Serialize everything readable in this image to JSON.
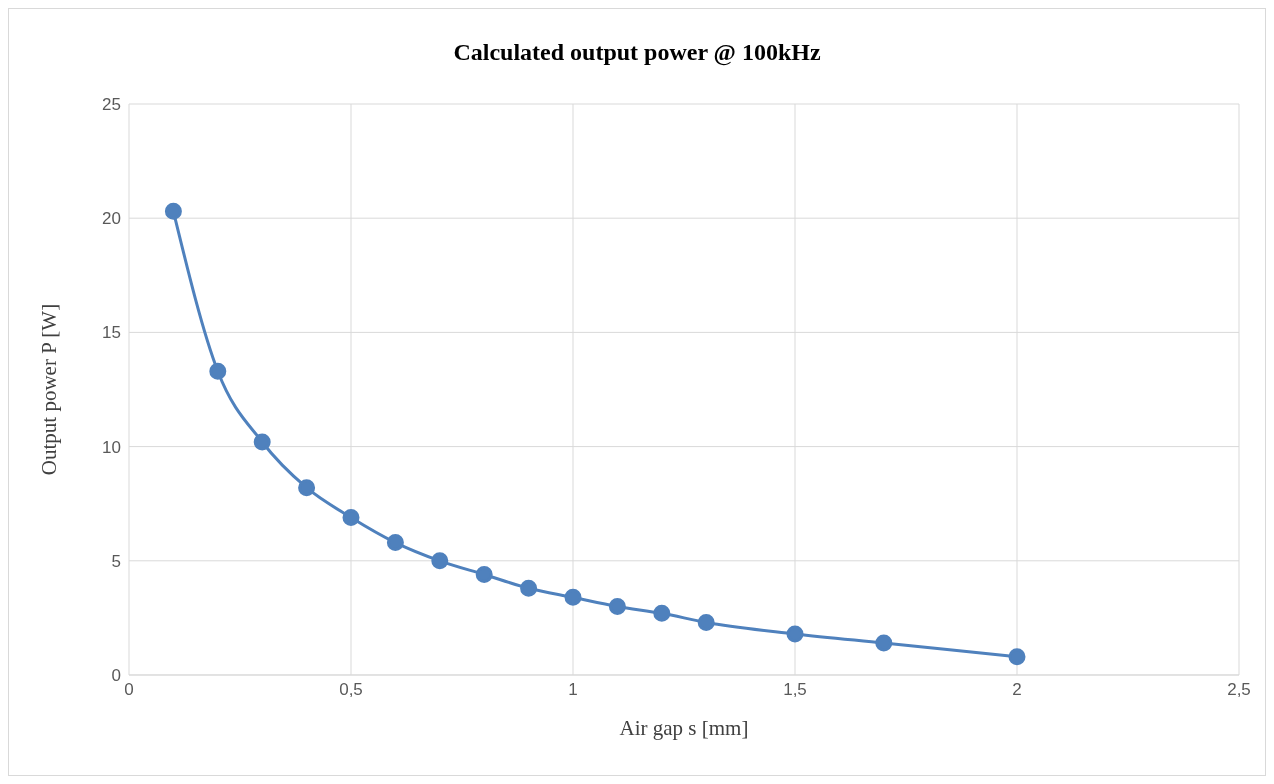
{
  "chart_data": {
    "type": "line",
    "title": "Calculated output power @ 100kHz",
    "xlabel": "Air gap s [mm]",
    "ylabel": "Output power P [W]",
    "x": [
      0.1,
      0.2,
      0.3,
      0.4,
      0.5,
      0.6,
      0.7,
      0.8,
      0.9,
      1.0,
      1.1,
      1.2,
      1.3,
      1.5,
      1.7,
      2.0
    ],
    "series": [
      {
        "color": "#4f81bd",
        "values": [
          20.3,
          13.3,
          10.2,
          8.2,
          6.9,
          5.8,
          5.0,
          4.4,
          3.8,
          3.4,
          3.0,
          2.7,
          2.3,
          1.8,
          1.4,
          0.8
        ]
      }
    ],
    "xlim": [
      0,
      2.5
    ],
    "xticks": [
      0,
      {
        "value": 0.5,
        "label": "0,5"
      },
      1,
      {
        "value": 1.5,
        "label": "1,5"
      },
      2,
      {
        "value": 2.5,
        "label": "2,5"
      }
    ],
    "ylim": [
      0,
      25
    ],
    "yticks": [
      0,
      5,
      10,
      15,
      20,
      25
    ],
    "grid": true,
    "marker": "circle",
    "line_style": "solid",
    "legend": false
  }
}
